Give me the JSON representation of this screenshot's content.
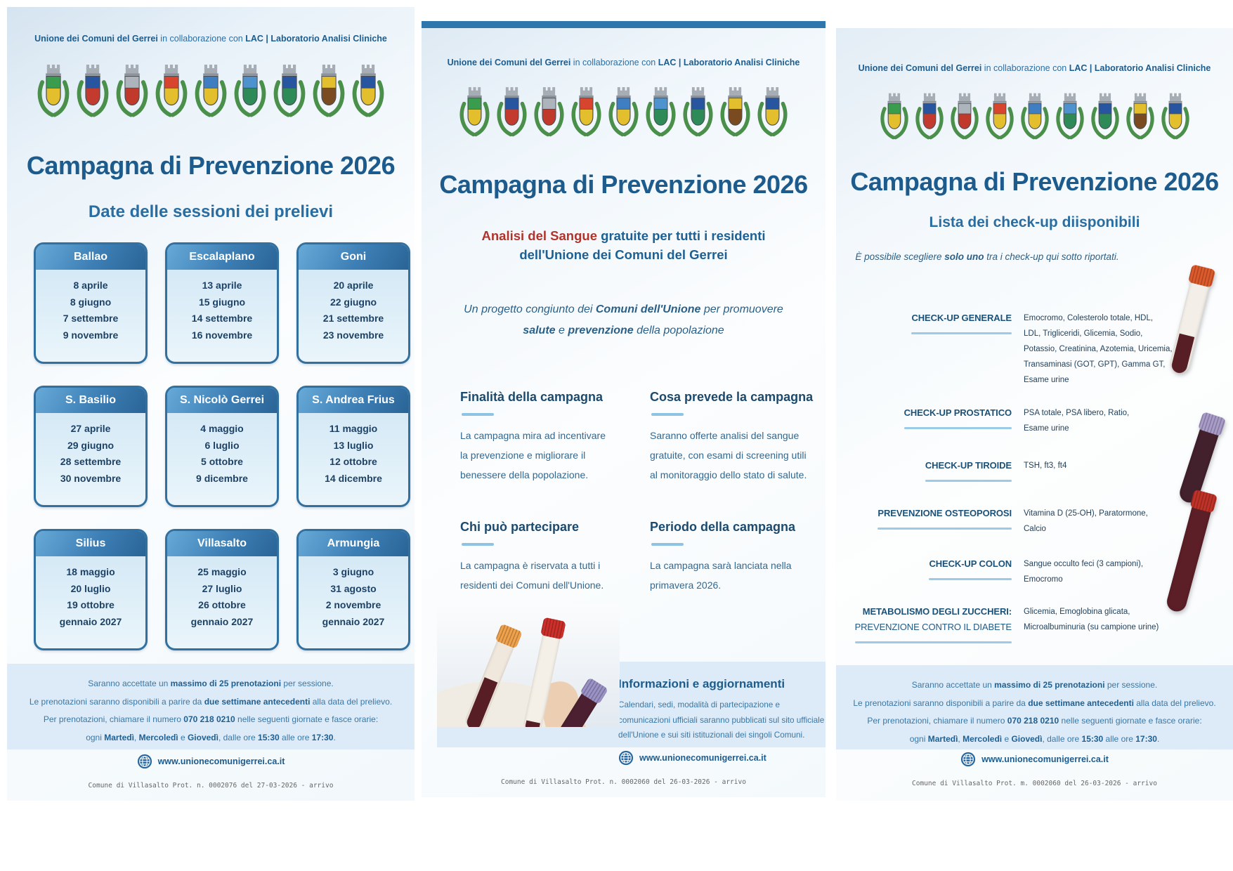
{
  "title": "Campagna di Prevenzione 2026",
  "header_segments": [
    {
      "t": "Unione dei Comuni del Gerrei",
      "b": true
    },
    {
      "t": " in collaborazione con ",
      "b": false
    },
    {
      "t": "LAC | Laboratorio Analisi Cliniche",
      "b": true
    }
  ],
  "crests": [
    {
      "a": "#3a9d4e",
      "b": "#e3bf2e"
    },
    {
      "a": "#2855a0",
      "b": "#c23b2e"
    },
    {
      "a": "#aeb4bb",
      "b": "#c0392b"
    },
    {
      "a": "#d8452e",
      "b": "#e3bf2e"
    },
    {
      "a": "#3f7fc1",
      "b": "#e3bf2e"
    },
    {
      "a": "#4f93ce",
      "b": "#2e8b57"
    },
    {
      "a": "#2855a0",
      "b": "#2e8b57"
    },
    {
      "a": "#e3bf2e",
      "b": "#7a4a21"
    },
    {
      "a": "#2855a0",
      "b": "#e3bf2e"
    }
  ],
  "left": {
    "subtitle": "Date delle sessioni dei prelievi",
    "cards": [
      {
        "town": "Ballao",
        "dates": [
          "8 aprile",
          "8 giugno",
          "7 settembre",
          "9 novembre"
        ]
      },
      {
        "town": "Escalaplano",
        "dates": [
          "13 aprile",
          "15 giugno",
          "14 settembre",
          "16 novembre"
        ]
      },
      {
        "town": "Goni",
        "dates": [
          "20 aprile",
          "22 giugno",
          "21 settembre",
          "23 novembre"
        ]
      },
      {
        "town": "S. Basilio",
        "dates": [
          "27 aprile",
          "29 giugno",
          "28 settembre",
          "30 novembre"
        ]
      },
      {
        "town": "S. Nicolò Gerrei",
        "dates": [
          "4 maggio",
          "6 luglio",
          "5 ottobre",
          "9 dicembre"
        ]
      },
      {
        "town": "S. Andrea Frius",
        "dates": [
          "11 maggio",
          "13 luglio",
          "12 ottobre",
          "14 dicembre"
        ]
      },
      {
        "town": "Silius",
        "dates": [
          "18 maggio",
          "20 luglio",
          "19 ottobre",
          "gennaio 2027"
        ]
      },
      {
        "town": "Villasalto",
        "dates": [
          "25 maggio",
          "27 luglio",
          "26 ottobre",
          "gennaio 2027"
        ]
      },
      {
        "town": "Armungia",
        "dates": [
          "3 giugno",
          "31 agosto",
          "2 novembre",
          "gennaio 2027"
        ]
      }
    ],
    "protocol": "Comune di Villasalto Prot. n. 0002076 del 27-03-2026 - arrivo"
  },
  "middle": {
    "lead1_segments": [
      {
        "t": "Analisi del Sangue",
        "b": true,
        "c": "#b0342c"
      },
      {
        "t": " gratuite per tutti i residenti",
        "b": true
      }
    ],
    "lead2": "dell'Unione dei Comuni del Gerrei",
    "project1_segments": [
      {
        "t": "Un progetto congiunto dei ",
        "b": false
      },
      {
        "t": "Comuni dell'Unione",
        "b": true
      },
      {
        "t": " per promuovere",
        "b": false
      }
    ],
    "project2_segments": [
      {
        "t": "salute",
        "b": true
      },
      {
        "t": " e ",
        "b": false
      },
      {
        "t": "prevenzione",
        "b": true
      },
      {
        "t": " della popolazione",
        "b": false
      }
    ],
    "sections": [
      {
        "heading": "Finalità della campagna",
        "body": "La campagna mira ad incentivare\nla prevenzione e migliorare il\nbenessere della popolazione."
      },
      {
        "heading": "Cosa prevede la campagna",
        "body": "Saranno offerte analisi del sangue\ngratuite, con esami di screening utili\nal monitoraggio dello stato di salute."
      },
      {
        "heading": "Chi può partecipare",
        "body": "La campagna è riservata a tutti i\nresidenti dei Comuni dell'Unione."
      },
      {
        "heading": "Periodo della campagna",
        "body": "La campagna sarà lanciata nella\nprimavera 2026."
      }
    ],
    "info": {
      "heading": "Informazioni e aggiornamenti",
      "body": "Calendari, sedi, modalità di partecipazione e\ncomunicazioni ufficiali saranno pubblicati sul sito ufficiale\ndell'Unione e sui siti istituzionali dei singoli Comuni."
    },
    "protocol": "Comune di Villasalto Prot. n. 0002060 del 26-03-2026 - arrivo"
  },
  "right": {
    "subtitle": "Lista dei check-up diisponibili",
    "note_segments": [
      {
        "t": "È possibile scegliere ",
        "b": false
      },
      {
        "t": "solo uno",
        "b": true
      },
      {
        "t": " tra i check-up qui sotto riportati.",
        "b": false
      }
    ],
    "checkups": [
      {
        "label": "CHECK-UP GENERALE",
        "desc": "Emocromo, Colesterolo totale, HDL,\nLDL, Trigliceridi, Glicemia, Sodio,\nPotassio, Creatinina, Azotemia, Uricemia,\nTransaminasi (GOT, GPT), Gamma GT,\nEsame urine"
      },
      {
        "label": "CHECK-UP PROSTATICO",
        "desc": "PSA totale, PSA libero, Ratio,\nEsame urine"
      },
      {
        "label": "CHECK-UP TIROIDE",
        "desc": "TSH, ft3, ft4"
      },
      {
        "label": "PREVENZIONE OSTEOPOROSI",
        "desc": "Vitamina D (25-OH), Paratormone,\nCalcio"
      },
      {
        "label": "CHECK-UP COLON",
        "desc": "Sangue occulto feci (3 campioni),\nEmocromo"
      },
      {
        "label": "METABOLISMO DEGLI ZUCCHERI:",
        "label2": "PREVENZIONE CONTRO IL DIABETE",
        "desc": "Glicemia, Emoglobina glicata,\nMicroalbuminuria (su campione urine)"
      }
    ],
    "protocol": "Comune di Villasalto Prot. m. 0002060 del 26-03-2026 - arrivo"
  },
  "footer": {
    "lines": [
      [
        {
          "t": "Saranno accettate un ",
          "b": false
        },
        {
          "t": "massimo di 25 prenotazioni",
          "b": true
        },
        {
          "t": " per sessione.",
          "b": false
        }
      ],
      [
        {
          "t": "Le prenotazioni saranno disponibili a parire da ",
          "b": false
        },
        {
          "t": "due settimane antecedenti",
          "b": true
        },
        {
          "t": " alla data del prelievo.",
          "b": false
        }
      ],
      [
        {
          "t": "Per prenotazioni, chiamare il numero ",
          "b": false
        },
        {
          "t": "070 218 0210",
          "b": true
        },
        {
          "t": " nelle seguenti giornate e fasce orarie:",
          "b": false
        }
      ],
      [
        {
          "t": "ogni ",
          "b": false
        },
        {
          "t": "Martedì",
          "b": true
        },
        {
          "t": ", ",
          "b": false
        },
        {
          "t": "Mercoledì",
          "b": true
        },
        {
          "t": " e ",
          "b": false
        },
        {
          "t": "Giovedì",
          "b": true
        },
        {
          "t": ", dalle ore ",
          "b": false
        },
        {
          "t": "15:30",
          "b": true
        },
        {
          "t": " alle ore ",
          "b": false
        },
        {
          "t": "17:30",
          "b": true
        },
        {
          "t": ".",
          "b": false
        }
      ]
    ],
    "website": "www.unionecomunigerrei.ca.it"
  },
  "colors": {
    "accent_bar": "#2e77ac",
    "title_blue": "#1c5b8c",
    "red_accent": "#b0342c",
    "band_bg": "#dcebf7",
    "card_border": "#31709f",
    "underline_accent": "#8fc3e4"
  }
}
